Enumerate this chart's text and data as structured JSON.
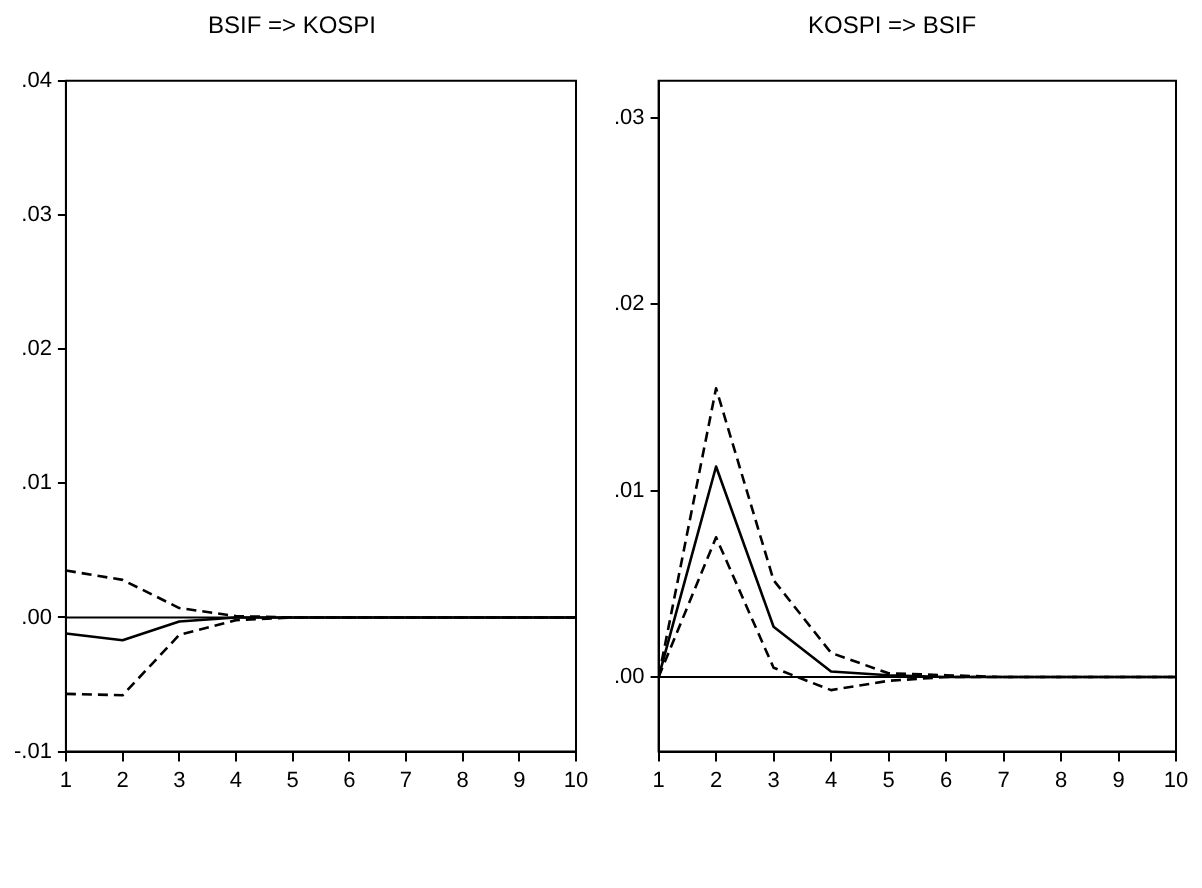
{
  "chart_data": [
    {
      "type": "line",
      "title": "BSIF => KOSPI",
      "x": [
        1,
        2,
        3,
        4,
        5,
        6,
        7,
        8,
        9,
        10
      ],
      "xlim": [
        1,
        10
      ],
      "xticks": [
        1,
        2,
        3,
        4,
        5,
        6,
        7,
        8,
        9,
        10
      ],
      "ylim": [
        -0.01,
        0.04
      ],
      "yticks": [
        {
          "value": -0.01,
          "label": "-.01"
        },
        {
          "value": 0,
          "label": ".00"
        },
        {
          "value": 0.01,
          "label": ".01"
        },
        {
          "value": 0.02,
          "label": ".02"
        },
        {
          "value": 0.03,
          "label": ".03"
        },
        {
          "value": 0.04,
          "label": ".04"
        }
      ],
      "series": [
        {
          "color": "#000000",
          "line_style": "solid",
          "values": [
            -0.0012,
            -0.0017,
            -0.0003,
            0,
            0,
            0,
            0,
            0,
            0,
            0
          ]
        },
        {
          "color": "#000000",
          "line_style": "dashed",
          "values": [
            0.0035,
            0.0028,
            0.0007,
            0.0001,
            0,
            0,
            0,
            0,
            0,
            0
          ]
        },
        {
          "color": "#000000",
          "line_style": "dashed",
          "values": [
            -0.0057,
            -0.0058,
            -0.0013,
            -0.0002,
            0,
            0,
            0,
            0,
            0,
            0
          ]
        }
      ],
      "ref_lines": [
        {
          "axis": "y",
          "value": 0,
          "color": "#000000"
        }
      ],
      "marker": "none",
      "grid": false,
      "legend": false
    },
    {
      "type": "line",
      "title": "KOSPI => BSIF",
      "x": [
        1,
        2,
        3,
        4,
        5,
        6,
        7,
        8,
        9,
        10
      ],
      "xlim": [
        1,
        10
      ],
      "xticks": [
        1,
        2,
        3,
        4,
        5,
        6,
        7,
        8,
        9,
        10
      ],
      "ylim": [
        -0.004,
        0.032
      ],
      "yticks": [
        {
          "value": 0,
          "label": ".00"
        },
        {
          "value": 0.01,
          "label": ".01"
        },
        {
          "value": 0.02,
          "label": ".02"
        },
        {
          "value": 0.03,
          "label": ".03"
        }
      ],
      "series": [
        {
          "color": "#000000",
          "line_style": "solid",
          "values": [
            0,
            0.0113,
            0.0027,
            0.0003,
            0.0001,
            0,
            0,
            0,
            0,
            0
          ]
        },
        {
          "color": "#000000",
          "line_style": "dashed",
          "values": [
            0,
            0.0155,
            0.0052,
            0.0013,
            0.0002,
            0.0001,
            0,
            0,
            0,
            0
          ]
        },
        {
          "color": "#000000",
          "line_style": "dashed",
          "values": [
            0,
            0.0075,
            0.0005,
            -0.0007,
            -0.0002,
            0,
            0,
            0,
            0,
            0
          ]
        }
      ],
      "ref_lines": [
        {
          "axis": "y",
          "value": 0,
          "color": "#000000"
        }
      ],
      "marker": "none",
      "grid": false,
      "legend": false
    }
  ]
}
